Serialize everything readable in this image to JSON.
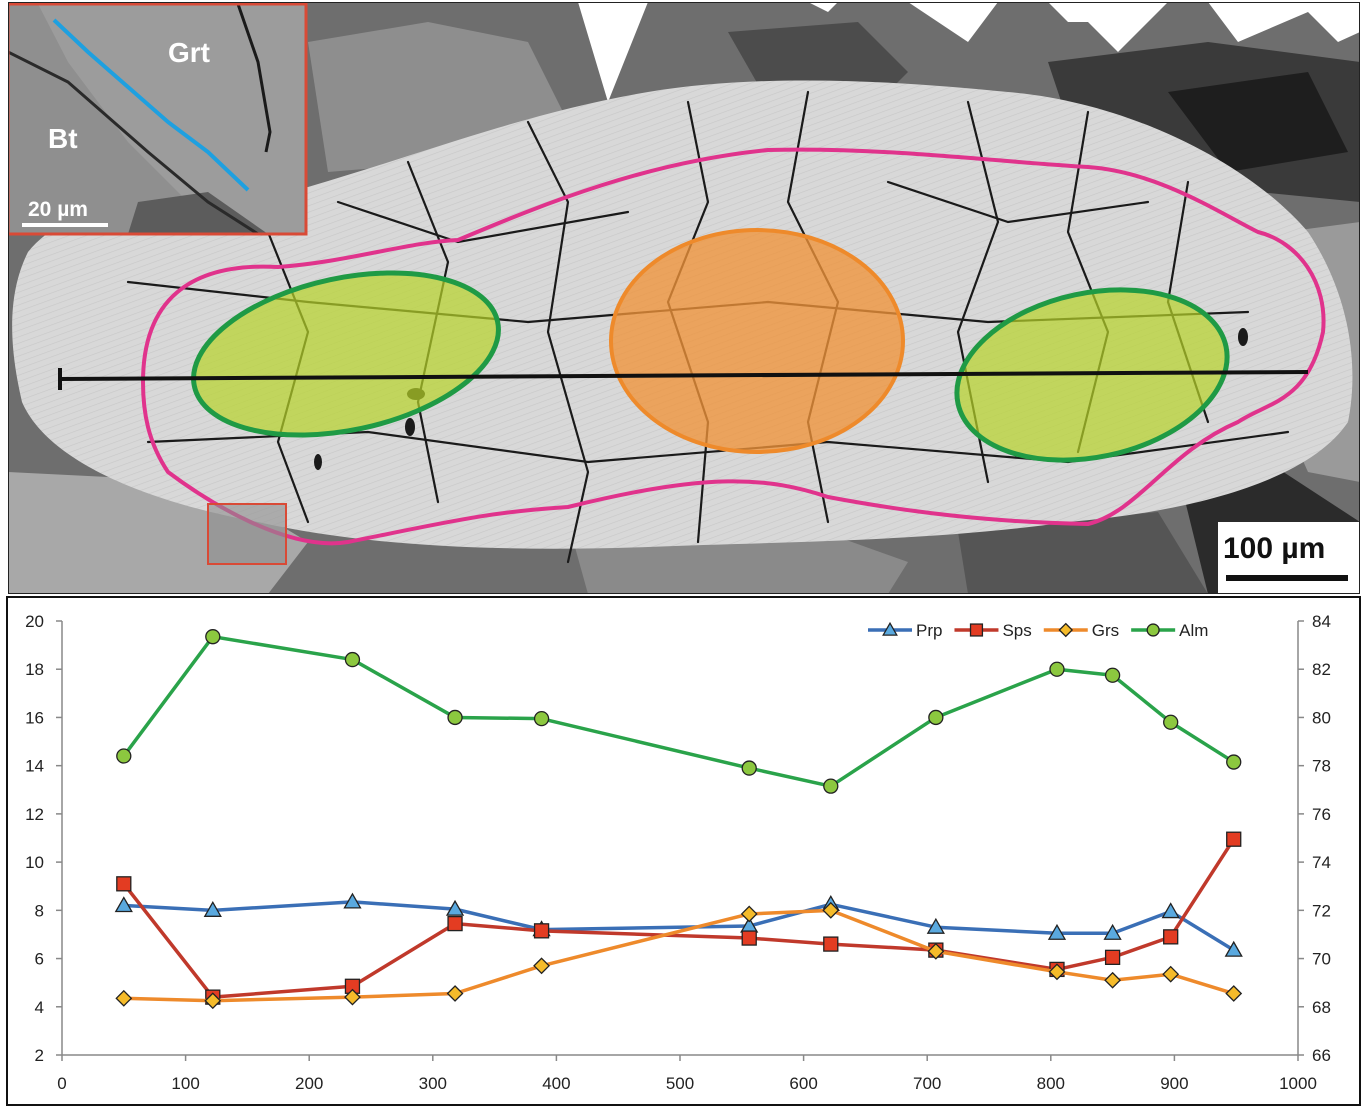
{
  "micrograph": {
    "inset_labels": {
      "garnet": "Grt",
      "biotite": "Bt"
    },
    "inset_scale_label": "20 µm",
    "main_scale_label": "100 µm",
    "colors": {
      "rim_outline": "#e0338c",
      "core_zone": "#f0943a",
      "mantle_zone": "#b8d42a",
      "mantle_outline": "#1f9a45",
      "traverse_line": "#111111",
      "inset_frame": "#d94a36",
      "inset_contact": "#1ea0e0"
    }
  },
  "chart_data": {
    "type": "line",
    "title": "",
    "xlabel": "",
    "ylabel": "",
    "y2label": "",
    "xlim": [
      0,
      1000
    ],
    "x_ticks": [
      0,
      100,
      200,
      300,
      400,
      500,
      600,
      700,
      800,
      900,
      1000
    ],
    "ylim": [
      2,
      20
    ],
    "y_ticks": [
      2,
      4,
      6,
      8,
      10,
      12,
      14,
      16,
      18,
      20
    ],
    "y2lim": [
      66,
      84
    ],
    "y2_ticks": [
      66,
      68,
      70,
      72,
      74,
      76,
      78,
      80,
      82,
      84
    ],
    "grid": false,
    "legend_position": "top-right",
    "series": [
      {
        "name": "Prp",
        "axis": "left",
        "color": "#3a6fb6",
        "marker": "triangle",
        "marker_color": "#5aa9df",
        "x": [
          50,
          122,
          235,
          318,
          388,
          556,
          622,
          707,
          805,
          850,
          897,
          948
        ],
        "y": [
          8.2,
          8.0,
          8.35,
          8.05,
          7.2,
          7.35,
          8.25,
          7.3,
          7.05,
          7.05,
          7.95,
          6.35
        ]
      },
      {
        "name": "Sps",
        "axis": "left",
        "color": "#c0392b",
        "marker": "square",
        "marker_color": "#e33c22",
        "x": [
          50,
          122,
          235,
          318,
          388,
          556,
          622,
          707,
          805,
          850,
          897,
          948
        ],
        "y": [
          9.1,
          4.4,
          4.85,
          7.45,
          7.15,
          6.85,
          6.6,
          6.35,
          5.55,
          6.05,
          6.9,
          10.95
        ]
      },
      {
        "name": "Grs",
        "axis": "left",
        "color": "#ee8a2b",
        "marker": "diamond",
        "marker_color": "#f5bb2a",
        "x": [
          50,
          122,
          235,
          318,
          388,
          556,
          622,
          707,
          805,
          850,
          897,
          948
        ],
        "y": [
          4.35,
          4.25,
          4.4,
          4.55,
          5.7,
          7.85,
          8.0,
          6.3,
          5.45,
          5.1,
          5.35,
          4.55
        ]
      },
      {
        "name": "Alm",
        "axis": "right",
        "color": "#2aa34a",
        "marker": "circle",
        "marker_color": "#8cc83f",
        "x": [
          50,
          122,
          235,
          318,
          388,
          556,
          622,
          707,
          805,
          850,
          897,
          948
        ],
        "y": [
          78.4,
          83.35,
          82.4,
          80.0,
          79.95,
          77.9,
          77.15,
          80.0,
          82.0,
          81.75,
          79.8,
          78.15
        ]
      }
    ]
  }
}
